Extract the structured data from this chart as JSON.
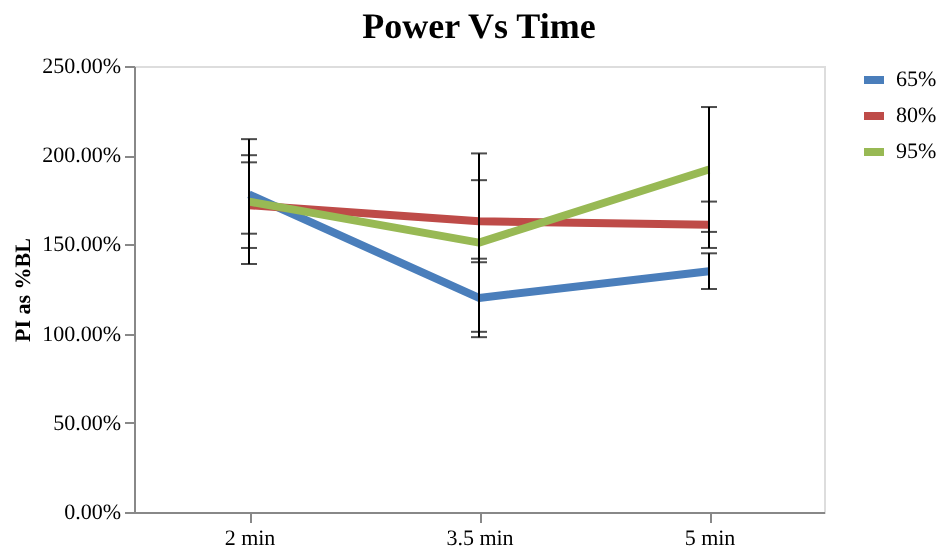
{
  "chart_data": {
    "type": "line",
    "title": "Power Vs Time",
    "ylabel": "PI as %BL",
    "categories": [
      "2 min",
      "3.5 min",
      "5 min"
    ],
    "series": [
      {
        "name": "65%",
        "color": "#4a7ebb",
        "values": [
          178,
          120,
          135
        ],
        "errors": [
          22,
          22,
          10
        ]
      },
      {
        "name": "80%",
        "color": "#be4b48",
        "values": [
          172,
          163,
          161
        ],
        "errors": [
          24,
          23,
          13
        ]
      },
      {
        "name": "95%",
        "color": "#98b954",
        "values": [
          174,
          151,
          192
        ],
        "errors": [
          35,
          50,
          35
        ]
      }
    ],
    "ylim": [
      0,
      250
    ],
    "yticks": [
      {
        "value": 0,
        "label": "0.00%"
      },
      {
        "value": 50,
        "label": "50.00%"
      },
      {
        "value": 100,
        "label": "100.00%"
      },
      {
        "value": 150,
        "label": "150.00%"
      },
      {
        "value": 200,
        "label": "200.00%"
      },
      {
        "value": 250,
        "label": "250.00%"
      }
    ],
    "grid": false,
    "legend": "right",
    "marker": "none",
    "line_style": "solid"
  }
}
